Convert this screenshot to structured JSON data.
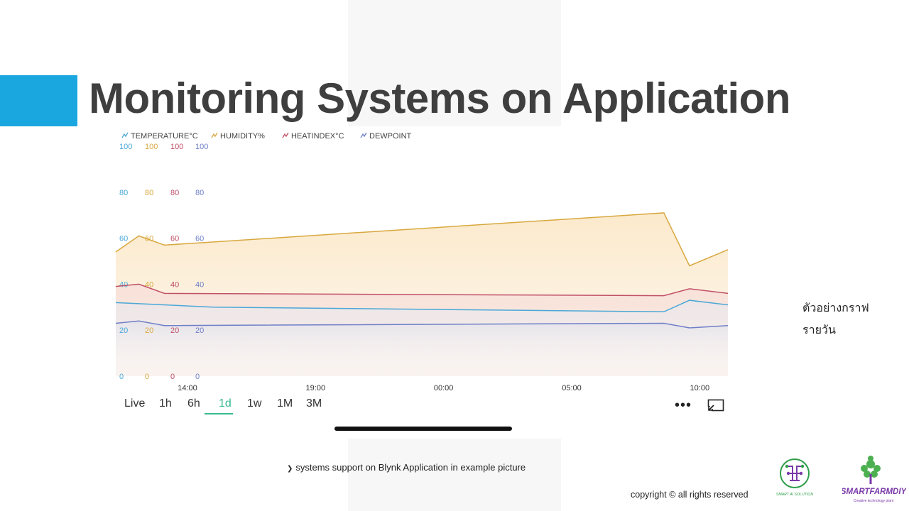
{
  "slide": {
    "title": "Monitoring Systems on Application",
    "note_line1": "ตัวอย่างกราฟ",
    "note_line2": "รายวัน",
    "caption": "systems support on Blynk Application in example picture",
    "copyright": "copyright © all rights reserved",
    "logo1_text": "SMART AI SOLUTION",
    "logo2_text": "SMARTFARMDIY",
    "logo2_tagline": "Creative technology plant"
  },
  "colors": {
    "accent": "#1aa7e0",
    "temperature": "#4aa8d8",
    "humidity": "#d8a840",
    "heatindex": "#c05068",
    "dewpoint": "#6f7fc8",
    "active_tab": "#36b98f"
  },
  "app": {
    "tabs": [
      {
        "label": "Live",
        "active": false
      },
      {
        "label": "1h",
        "active": false
      },
      {
        "label": "6h",
        "active": false
      },
      {
        "label": "1d",
        "active": true
      },
      {
        "label": "1w",
        "active": false
      },
      {
        "label": "1M",
        "active": false
      },
      {
        "label": "3M",
        "active": false
      }
    ],
    "more_icon": "more-horizontal-icon",
    "fullscreen_icon": "fullscreen-exit-icon"
  },
  "chart_data": {
    "type": "area",
    "legend_position": "top-left",
    "grid": false,
    "x_ticks": [
      "14:00",
      "19:00",
      "00:00",
      "05:00",
      "10:00"
    ],
    "x_tick_values": [
      0,
      5,
      10,
      15,
      20
    ],
    "x_range": [
      -2.8,
      21.1
    ],
    "ylim": [
      0,
      100
    ],
    "y_ticks": [
      "0",
      "20",
      "40",
      "60",
      "80",
      "100"
    ],
    "series": [
      {
        "name": "TEMPERATURE°C",
        "color_key": "temperature",
        "x": [
          -2.8,
          1,
          18.6,
          19.6,
          21.1
        ],
        "y": [
          32,
          30,
          28,
          33,
          31
        ]
      },
      {
        "name": "HUMIDITY%",
        "color_key": "humidity",
        "x": [
          -2.8,
          -1.9,
          -0.9,
          0.5,
          18.6,
          19.6,
          21.1
        ],
        "y": [
          54,
          61,
          57,
          58,
          71,
          48,
          55
        ]
      },
      {
        "name": "HEATINDEX°C",
        "color_key": "heatindex",
        "x": [
          -2.8,
          -1.9,
          -0.9,
          18.6,
          19.6,
          21.1
        ],
        "y": [
          39,
          40,
          36,
          35,
          38,
          36
        ]
      },
      {
        "name": "DEWPOINT",
        "color_key": "dewpoint",
        "x": [
          -2.8,
          -1.9,
          -0.9,
          18.6,
          19.6,
          21.1
        ],
        "y": [
          23,
          24,
          22,
          23,
          21,
          22
        ]
      }
    ]
  }
}
